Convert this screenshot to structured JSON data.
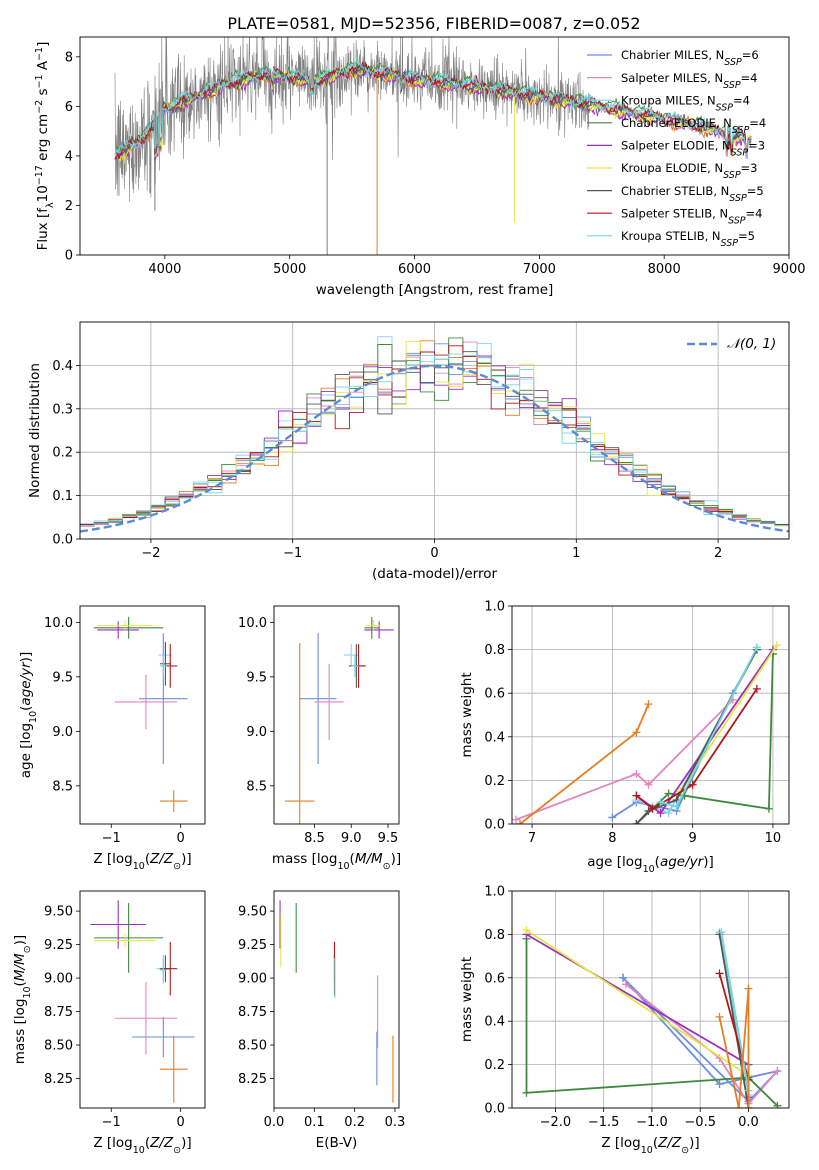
{
  "title": "PLATE=0581, MJD=52356, FIBERID=0087, z=0.052",
  "colors": {
    "Chabrier MILES": "#6a8ee0",
    "Salpeter MILES": "#e384c0",
    "Kroupa MILES": "#8cd0f0",
    "Chabrier ELODIE": "#3f8a3f",
    "Salpeter ELODIE": "#9b30c0",
    "Kroupa ELODIE": "#e6e645",
    "Chabrier STELIB": "#555555",
    "Salpeter STELIB": "#b01818",
    "Kroupa STELIB": "#6fd8d8",
    "data": "#808080",
    "orange": "#e67e22"
  },
  "chart_data": [
    {
      "type": "line",
      "id": "spectrum",
      "title": "PLATE=0581, MJD=52356, FIBERID=0087, z=0.052",
      "xlabel": "wavelength [Angstrom, rest frame]",
      "ylabel": "Flux [f_λ 10^-17 erg cm^-2 s^-1 A^-1]",
      "xlim": [
        3320,
        9000
      ],
      "ylim": [
        0,
        8.8
      ],
      "xticks": [
        4000,
        5000,
        6000,
        7000,
        8000,
        9000
      ],
      "yticks": [
        0,
        2,
        4,
        6,
        8
      ],
      "legend": [
        "Chabrier MILES, N_SSP=6",
        "Salpeter MILES, N_SSP=4",
        "Kroupa MILES, N_SSP=4",
        "Chabrier ELODIE, N_SSP=4",
        "Salpeter ELODIE, N_SSP=3",
        "Kroupa ELODIE, N_SSP=3",
        "Chabrier STELIB, N_SSP=5",
        "Salpeter STELIB, N_SSP=4",
        "Kroupa STELIB, N_SSP=5"
      ],
      "continuum": [
        [
          3600,
          4.0
        ],
        [
          3700,
          4.3
        ],
        [
          3800,
          4.6
        ],
        [
          3900,
          5.2
        ],
        [
          4000,
          5.9
        ],
        [
          4200,
          6.3
        ],
        [
          4500,
          6.9
        ],
        [
          4800,
          7.3
        ],
        [
          5000,
          7.2
        ],
        [
          5200,
          7.0
        ],
        [
          5500,
          7.5
        ],
        [
          5800,
          7.3
        ],
        [
          6000,
          7.1
        ],
        [
          6200,
          7.0
        ],
        [
          6500,
          6.8
        ],
        [
          7000,
          6.4
        ],
        [
          7400,
          6.1
        ],
        [
          7800,
          5.7
        ],
        [
          8200,
          5.3
        ],
        [
          8600,
          4.8
        ],
        [
          8700,
          4.6
        ]
      ],
      "models_end": 8700,
      "data_end": 7400,
      "spikes": [
        [
          5300,
          0.0
        ],
        [
          5700,
          0.0
        ],
        [
          6800,
          1.3
        ],
        [
          3880,
          2.5
        ],
        [
          3920,
          1.8
        ]
      ]
    },
    {
      "type": "line",
      "id": "residual_hist",
      "xlabel": "(data-model)/error",
      "ylabel": "Normed distribution",
      "xlim": [
        -2.5,
        2.5
      ],
      "ylim": [
        0,
        0.5
      ],
      "xticks": [
        -2,
        -1,
        0,
        1,
        2
      ],
      "yticks": [
        0.0,
        0.1,
        0.2,
        0.3,
        0.4
      ],
      "legend": [
        "N(0,1)"
      ],
      "bin_width": 0.1
    },
    {
      "type": "scatter",
      "id": "age_vs_Z",
      "xlabel": "Z [log10(Z/Z☉)]",
      "ylabel": "age [log10(age/yr)]",
      "xlim": [
        -1.45,
        0.35
      ],
      "ylim": [
        8.15,
        10.15
      ],
      "xticks": [
        -1,
        0
      ],
      "yticks": [
        8.5,
        9.0,
        9.5,
        10.0
      ],
      "points": [
        {
          "model": "Chabrier MILES",
          "x": -0.25,
          "y": 9.3,
          "xe": 0.35,
          "ye": 0.6
        },
        {
          "model": "Salpeter MILES",
          "x": -0.5,
          "y": 9.27,
          "xe": 0.45,
          "ye": 0.25
        },
        {
          "model": "Kroupa MILES",
          "x": -0.22,
          "y": 9.7,
          "xe": 0.1,
          "ye": 0.1
        },
        {
          "model": "Chabrier ELODIE",
          "x": -0.75,
          "y": 9.95,
          "xe": 0.5,
          "ye": 0.1
        },
        {
          "model": "Salpeter ELODIE",
          "x": -0.9,
          "y": 9.93,
          "xe": 0.3,
          "ye": 0.08
        },
        {
          "model": "Kroupa ELODIE",
          "x": -0.8,
          "y": 9.97,
          "xe": 0.4,
          "ye": 0.05
        },
        {
          "model": "Chabrier STELIB",
          "x": -0.22,
          "y": 9.62,
          "xe": 0.08,
          "ye": 0.2
        },
        {
          "model": "Salpeter STELIB",
          "x": -0.15,
          "y": 9.6,
          "xe": 0.1,
          "ye": 0.2
        },
        {
          "model": "Kroupa STELIB",
          "x": -0.25,
          "y": 9.6,
          "xe": 0.05,
          "ye": 0.1
        },
        {
          "model": "orange",
          "x": -0.1,
          "y": 8.36,
          "xe": 0.2,
          "ye": 0.1
        }
      ]
    },
    {
      "type": "scatter",
      "id": "age_vs_mass",
      "xlabel": "mass [log10(M/M☉)]",
      "ylabel": "",
      "xlim": [
        7.95,
        9.65
      ],
      "ylim": [
        8.15,
        10.15
      ],
      "xticks": [
        8.5,
        9.0,
        9.5
      ],
      "yticks": [
        8.5,
        9.0,
        9.5,
        10.0
      ],
      "points": [
        {
          "model": "Chabrier MILES",
          "x": 8.55,
          "y": 9.3,
          "xe": 0.25,
          "ye": 0.6
        },
        {
          "model": "Salpeter MILES",
          "x": 8.7,
          "y": 9.27,
          "xe": 0.2,
          "ye": 0.35
        },
        {
          "model": "Kroupa MILES",
          "x": 9.0,
          "y": 9.7,
          "xe": 0.1,
          "ye": 0.1
        },
        {
          "model": "Chabrier ELODIE",
          "x": 9.28,
          "y": 9.95,
          "xe": 0.1,
          "ye": 0.1
        },
        {
          "model": "Salpeter ELODIE",
          "x": 9.38,
          "y": 9.93,
          "xe": 0.2,
          "ye": 0.08
        },
        {
          "model": "Kroupa ELODIE",
          "x": 9.3,
          "y": 9.97,
          "xe": 0.1,
          "ye": 0.05
        },
        {
          "model": "Chabrier STELIB",
          "x": 9.07,
          "y": 9.6,
          "xe": 0.1,
          "ye": 0.2
        },
        {
          "model": "Salpeter STELIB",
          "x": 9.1,
          "y": 9.6,
          "xe": 0.1,
          "ye": 0.2
        },
        {
          "model": "Kroupa STELIB",
          "x": 9.05,
          "y": 9.6,
          "xe": 0.05,
          "ye": 0.1
        },
        {
          "model": "orange",
          "x": 8.3,
          "y": 8.36,
          "xe": 0.2,
          "ye": 1.45
        }
      ]
    },
    {
      "type": "line",
      "id": "massweight_vs_age",
      "xlabel": "age [log10(age/yr)]",
      "ylabel": "mass weight",
      "xlim": [
        6.75,
        10.2
      ],
      "ylim": [
        0,
        1.0
      ],
      "xticks": [
        7,
        8,
        9,
        10
      ],
      "yticks": [
        0.0,
        0.2,
        0.4,
        0.6,
        0.8,
        1.0
      ],
      "series": [
        {
          "model": "Chabrier MILES",
          "points": [
            [
              8.0,
              0.03
            ],
            [
              8.3,
              0.1
            ],
            [
              8.8,
              0.06
            ],
            [
              9.5,
              0.6
            ],
            [
              9.8,
              0.8
            ]
          ]
        },
        {
          "model": "Salpeter MILES",
          "points": [
            [
              6.8,
              0.02
            ],
            [
              8.3,
              0.23
            ],
            [
              8.45,
              0.18
            ],
            [
              9.5,
              0.57
            ]
          ]
        },
        {
          "model": "Kroupa MILES",
          "points": [
            [
              8.3,
              0.11
            ],
            [
              8.5,
              0.08
            ],
            [
              8.7,
              0.05
            ],
            [
              9.8,
              0.8
            ]
          ]
        },
        {
          "model": "Chabrier ELODIE",
          "points": [
            [
              8.3,
              0.0
            ],
            [
              8.7,
              0.14
            ],
            [
              8.9,
              0.13
            ],
            [
              9.95,
              0.07
            ],
            [
              10.0,
              0.78
            ]
          ]
        },
        {
          "model": "Salpeter ELODIE",
          "points": [
            [
              8.3,
              0.13
            ],
            [
              8.6,
              0.05
            ],
            [
              10.0,
              0.8
            ]
          ]
        },
        {
          "model": "Kroupa ELODIE",
          "points": [
            [
              8.85,
              0.15
            ],
            [
              10.05,
              0.82
            ]
          ]
        },
        {
          "model": "Chabrier STELIB",
          "points": [
            [
              8.3,
              0.0
            ],
            [
              8.45,
              0.06
            ],
            [
              8.8,
              0.11
            ],
            [
              9.8,
              0.8
            ]
          ]
        },
        {
          "model": "Salpeter STELIB",
          "points": [
            [
              8.3,
              0.13
            ],
            [
              8.5,
              0.07
            ],
            [
              9.0,
              0.18
            ],
            [
              9.8,
              0.62
            ]
          ]
        },
        {
          "model": "Kroupa STELIB",
          "points": [
            [
              8.6,
              0.1
            ],
            [
              8.8,
              0.08
            ],
            [
              9.8,
              0.81
            ]
          ]
        },
        {
          "model": "orange",
          "points": [
            [
              6.85,
              0.0
            ],
            [
              8.3,
              0.42
            ],
            [
              8.45,
              0.55
            ]
          ]
        }
      ]
    },
    {
      "type": "scatter",
      "id": "mass_vs_Z",
      "xlabel": "Z [log10(Z/Z☉)]",
      "ylabel": "mass [log10(M/M☉)]",
      "xlim": [
        -1.45,
        0.35
      ],
      "ylim": [
        8.03,
        9.65
      ],
      "xticks": [
        -1,
        0
      ],
      "yticks": [
        8.25,
        8.5,
        8.75,
        9.0,
        9.25,
        9.5
      ],
      "points": [
        {
          "model": "Chabrier MILES",
          "x": -0.25,
          "y": 8.56,
          "xe": 0.45,
          "ye": 0.15
        },
        {
          "model": "Salpeter MILES",
          "x": -0.5,
          "y": 8.7,
          "xe": 0.45,
          "ye": 0.27
        },
        {
          "model": "Kroupa MILES",
          "x": -0.25,
          "y": 9.07,
          "xe": 0.1,
          "ye": 0.1
        },
        {
          "model": "Chabrier ELODIE",
          "x": -0.75,
          "y": 9.3,
          "xe": 0.5,
          "ye": 0.26
        },
        {
          "model": "Salpeter ELODIE",
          "x": -0.9,
          "y": 9.4,
          "xe": 0.4,
          "ye": 0.18
        },
        {
          "model": "Kroupa ELODIE",
          "x": -0.8,
          "y": 9.28,
          "xe": 0.45,
          "ye": 0.05
        },
        {
          "model": "Chabrier STELIB",
          "x": -0.22,
          "y": 9.07,
          "xe": 0.08,
          "ye": 0.1
        },
        {
          "model": "Salpeter STELIB",
          "x": -0.15,
          "y": 9.07,
          "xe": 0.1,
          "ye": 0.2
        },
        {
          "model": "Kroupa STELIB",
          "x": -0.25,
          "y": 9.06,
          "xe": 0.05,
          "ye": 0.1
        },
        {
          "model": "orange",
          "x": -0.1,
          "y": 8.32,
          "xe": 0.2,
          "ye": 0.25
        }
      ]
    },
    {
      "type": "scatter",
      "id": "mass_vs_EBV",
      "xlabel": "E(B-V)",
      "ylabel": "",
      "xlim": [
        0.0,
        0.31
      ],
      "ylim": [
        8.03,
        9.65
      ],
      "xticks": [
        0.0,
        0.1,
        0.2,
        0.3
      ],
      "yticks": [
        8.25,
        8.5,
        8.75,
        9.0,
        9.25,
        9.5
      ],
      "points": [
        {
          "model": "Chabrier MILES",
          "x": 0.255,
          "y": 8.4,
          "xe": 0,
          "ye": 0.2
        },
        {
          "model": "Salpeter MILES",
          "x": 0.257,
          "y": 8.75,
          "xe": 0,
          "ye": 0.27
        },
        {
          "model": "Kroupa MILES",
          "x": 0.15,
          "y": 9.07,
          "xe": 0,
          "ye": 0.1
        },
        {
          "model": "Chabrier ELODIE",
          "x": 0.055,
          "y": 9.3,
          "xe": 0,
          "ye": 0.26
        },
        {
          "model": "Salpeter ELODIE",
          "x": 0.015,
          "y": 9.4,
          "xe": 0,
          "ye": 0.18
        },
        {
          "model": "Kroupa ELODIE",
          "x": 0.017,
          "y": 9.28,
          "xe": 0,
          "ye": 0.2
        },
        {
          "model": "Chabrier STELIB",
          "x": 0.15,
          "y": 9.07,
          "xe": 0,
          "ye": 0.1
        },
        {
          "model": "Salpeter STELIB",
          "x": 0.15,
          "y": 9.07,
          "xe": 0,
          "ye": 0.2
        },
        {
          "model": "Kroupa STELIB",
          "x": 0.151,
          "y": 9.0,
          "xe": 0,
          "ye": 0.15
        },
        {
          "model": "orange",
          "x": 0.295,
          "y": 8.32,
          "xe": 0,
          "ye": 0.25
        }
      ]
    },
    {
      "type": "line",
      "id": "massweight_vs_Z",
      "xlabel": "Z [log10(Z/Z☉)]",
      "ylabel": "mass weight",
      "xlim": [
        -2.45,
        0.42
      ],
      "ylim": [
        0,
        1.0
      ],
      "xticks": [
        -2.0,
        -1.5,
        -1.0,
        -0.5,
        0.0
      ],
      "yticks": [
        0.0,
        0.2,
        0.4,
        0.6,
        0.8,
        1.0
      ],
      "series": [
        {
          "model": "Chabrier MILES",
          "points": [
            [
              -1.3,
              0.6
            ],
            [
              0.0,
              0.03
            ],
            [
              0.3,
              0.17
            ],
            [
              -0.3,
              0.11
            ],
            [
              -1.3,
              0.6
            ]
          ]
        },
        {
          "model": "Salpeter MILES",
          "points": [
            [
              -1.27,
              0.57
            ],
            [
              -0.3,
              0.23
            ],
            [
              0.0,
              0.02
            ],
            [
              0.3,
              0.17
            ]
          ]
        },
        {
          "model": "Kroupa MILES",
          "points": [
            [
              -0.3,
              0.81
            ],
            [
              0.0,
              0.06
            ]
          ]
        },
        {
          "model": "Chabrier ELODIE",
          "points": [
            [
              -2.3,
              0.78
            ],
            [
              -2.3,
              0.07
            ],
            [
              0.0,
              0.14
            ],
            [
              0.3,
              0.01
            ]
          ]
        },
        {
          "model": "Salpeter ELODIE",
          "points": [
            [
              -2.3,
              0.8
            ],
            [
              0.0,
              0.2
            ],
            [
              0.0,
              0.05
            ]
          ]
        },
        {
          "model": "Kroupa ELODIE",
          "points": [
            [
              -2.3,
              0.82
            ],
            [
              0.0,
              0.15
            ]
          ]
        },
        {
          "model": "Chabrier STELIB",
          "points": [
            [
              -0.3,
              0.8
            ],
            [
              0.0,
              0.0
            ]
          ]
        },
        {
          "model": "Salpeter STELIB",
          "points": [
            [
              -0.3,
              0.62
            ],
            [
              0.0,
              0.13
            ]
          ]
        },
        {
          "model": "Kroupa STELIB",
          "points": [
            [
              -0.28,
              0.81
            ],
            [
              0.0,
              0.08
            ]
          ]
        },
        {
          "model": "orange",
          "points": [
            [
              -0.3,
              0.42
            ],
            [
              -0.1,
              0.0
            ],
            [
              0.0,
              0.55
            ],
            [
              0.0,
              0.0
            ]
          ]
        }
      ]
    }
  ],
  "labels": {
    "spectrum_xlabel": "wavelength [Angstrom, rest frame]",
    "hist_xlabel": "(data-model)/error",
    "hist_ylabel": "Normed distribution",
    "massweight": "mass weight",
    "ebv": "E(B-V)"
  }
}
